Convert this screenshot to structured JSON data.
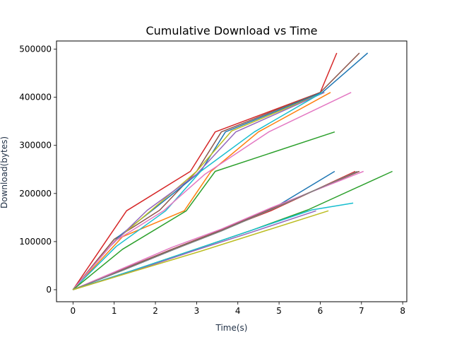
{
  "chart_data": {
    "type": "line",
    "title": "Cumulative Download vs Time",
    "xlabel": "Time(s)",
    "ylabel": "Download(bytes)",
    "xlim": [
      -0.4,
      8.1
    ],
    "ylim": [
      -25000,
      517000
    ],
    "xticks": [
      0,
      1,
      2,
      3,
      4,
      5,
      6,
      7,
      8
    ],
    "xtick_labels": [
      "0",
      "1",
      "2",
      "3",
      "4",
      "5",
      "6",
      "7",
      "8"
    ],
    "yticks": [
      0,
      100000,
      200000,
      300000,
      400000,
      500000
    ],
    "ytick_labels": [
      "0",
      "100000",
      "200000",
      "300000",
      "400000",
      "500000"
    ],
    "grid": false,
    "series": [
      {
        "color": "#d62728",
        "points": [
          [
            0,
            0
          ],
          [
            1.3,
            164000
          ],
          [
            2.85,
            246000
          ],
          [
            3.45,
            328000
          ],
          [
            6.0,
            410000
          ],
          [
            6.4,
            492000
          ]
        ]
      },
      {
        "color": "#8c564b",
        "points": [
          [
            0,
            0
          ],
          [
            1.0,
            105000
          ],
          [
            2.1,
            165000
          ],
          [
            3.0,
            246000
          ],
          [
            3.6,
            328000
          ],
          [
            6.0,
            410000
          ],
          [
            6.95,
            492000
          ]
        ]
      },
      {
        "color": "#1f77b4",
        "points": [
          [
            0,
            0
          ],
          [
            1.1,
            110000
          ],
          [
            2.0,
            170000
          ],
          [
            3.1,
            246000
          ],
          [
            3.7,
            328000
          ],
          [
            6.05,
            410000
          ],
          [
            7.15,
            492000
          ]
        ]
      },
      {
        "color": "#bcbd22",
        "points": [
          [
            0,
            0
          ],
          [
            1.0,
            100000
          ],
          [
            1.9,
            165000
          ],
          [
            3.0,
            246000
          ],
          [
            3.85,
            330000
          ],
          [
            6.1,
            410000
          ]
        ]
      },
      {
        "color": "#9467bd",
        "points": [
          [
            0,
            0
          ],
          [
            0.9,
            90000
          ],
          [
            1.8,
            165000
          ],
          [
            3.0,
            240000
          ],
          [
            3.95,
            328000
          ],
          [
            6.1,
            410000
          ]
        ]
      },
      {
        "color": "#ff7f0e",
        "points": [
          [
            0,
            0
          ],
          [
            1.2,
            110000
          ],
          [
            2.7,
            164000
          ],
          [
            3.35,
            246000
          ],
          [
            4.5,
            328000
          ],
          [
            6.25,
            410000
          ]
        ]
      },
      {
        "color": "#17becf",
        "points": [
          [
            0,
            0
          ],
          [
            1.05,
            90000
          ],
          [
            2.25,
            164000
          ],
          [
            3.1,
            246000
          ],
          [
            4.4,
            328000
          ],
          [
            6.05,
            410000
          ]
        ]
      },
      {
        "color": "#e377c2",
        "points": [
          [
            0,
            0
          ],
          [
            1.0,
            100000
          ],
          [
            2.2,
            164000
          ],
          [
            3.2,
            240000
          ],
          [
            4.75,
            328000
          ],
          [
            6.75,
            410000
          ]
        ]
      },
      {
        "color": "#2ca02c",
        "points": [
          [
            0,
            0
          ],
          [
            1.2,
            84000
          ],
          [
            2.75,
            164000
          ],
          [
            3.45,
            246000
          ],
          [
            6.35,
            328000
          ]
        ]
      },
      {
        "color": "#1f77b4",
        "points": [
          [
            0,
            0
          ],
          [
            1.2,
            40000
          ],
          [
            2.4,
            82000
          ],
          [
            3.6,
            124000
          ],
          [
            4.8,
            166000
          ],
          [
            6.35,
            246000
          ]
        ]
      },
      {
        "color": "#d62728",
        "points": [
          [
            0,
            0
          ],
          [
            1.2,
            42000
          ],
          [
            2.4,
            84000
          ],
          [
            3.6,
            124000
          ],
          [
            4.8,
            164000
          ],
          [
            6.85,
            246000
          ]
        ]
      },
      {
        "color": "#8c564b",
        "points": [
          [
            0,
            0
          ],
          [
            1.2,
            42000
          ],
          [
            2.4,
            84000
          ],
          [
            3.6,
            124000
          ],
          [
            4.8,
            168000
          ],
          [
            6.95,
            246000
          ]
        ]
      },
      {
        "color": "#e377c2",
        "points": [
          [
            0,
            0
          ],
          [
            1.2,
            44000
          ],
          [
            2.4,
            88000
          ],
          [
            3.6,
            126000
          ],
          [
            4.8,
            170000
          ],
          [
            7.05,
            246000
          ]
        ]
      },
      {
        "color": "#7f7f7f",
        "points": [
          [
            0,
            0
          ],
          [
            1.2,
            40000
          ],
          [
            2.4,
            82000
          ],
          [
            3.6,
            122000
          ],
          [
            4.8,
            166000
          ],
          [
            6.9,
            246000
          ]
        ]
      },
      {
        "color": "#2ca02c",
        "points": [
          [
            0,
            0
          ],
          [
            1.45,
            40000
          ],
          [
            2.9,
            82000
          ],
          [
            4.35,
            124000
          ],
          [
            5.7,
            166000
          ],
          [
            7.75,
            246000
          ]
        ]
      },
      {
        "color": "#17becf",
        "points": [
          [
            0,
            0
          ],
          [
            1.45,
            40000
          ],
          [
            2.9,
            82000
          ],
          [
            4.35,
            124000
          ],
          [
            5.8,
            166000
          ],
          [
            6.8,
            180000
          ]
        ]
      },
      {
        "color": "#9467bd",
        "points": [
          [
            0,
            0
          ],
          [
            1.45,
            38000
          ],
          [
            2.9,
            80000
          ],
          [
            4.35,
            120000
          ],
          [
            5.9,
            164000
          ]
        ]
      },
      {
        "color": "#bcbd22",
        "points": [
          [
            0,
            0
          ],
          [
            1.55,
            40000
          ],
          [
            3.1,
            80000
          ],
          [
            4.65,
            122000
          ],
          [
            6.2,
            164000
          ]
        ]
      }
    ]
  }
}
